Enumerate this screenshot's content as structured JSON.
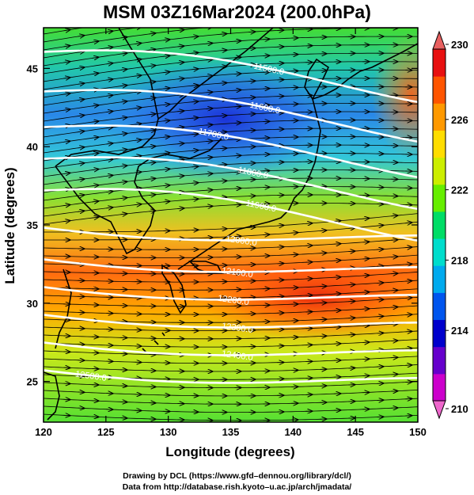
{
  "title": "MSM 03Z16Mar2024 (200.0hPa)",
  "x_axis": {
    "label": "Longitude (degrees)",
    "ticks": [
      "120",
      "125",
      "130",
      "135",
      "140",
      "145",
      "150"
    ],
    "range": [
      120,
      150
    ]
  },
  "y_axis": {
    "label": "Latitude  (degrees)",
    "ticks": [
      "25",
      "30",
      "35",
      "40",
      "45"
    ],
    "range": [
      22.4,
      47.6
    ]
  },
  "colorbar": {
    "ticks": [
      "230",
      "226",
      "222",
      "218",
      "214",
      "210"
    ],
    "range": [
      210,
      230
    ],
    "colors": [
      "#cc00cc",
      "#6600cc",
      "#0000cc",
      "#0055ee",
      "#00aaee",
      "#00ddcc",
      "#00dd66",
      "#66ee00",
      "#ccee00",
      "#ffdd00",
      "#ff9900",
      "#ff5500",
      "#e81010"
    ]
  },
  "contours": [
    {
      "label": "11500.0"
    },
    {
      "label": "11600.0"
    },
    {
      "label": "11700.0"
    },
    {
      "label": "11800.0"
    },
    {
      "label": "11900.0"
    },
    {
      "label": "12000.0"
    },
    {
      "label": "12100.0"
    },
    {
      "label": "12200.0"
    },
    {
      "label": "12300.0"
    },
    {
      "label": "12400.0"
    },
    {
      "label": "12500.0"
    }
  ],
  "credits": {
    "line1": "Drawing by DCL (https://www.gfd–dennou.org/library/dcl/)",
    "line2": "Data from http://database.rish.kyoto–u.ac.jp/arch/jmadata/"
  }
}
